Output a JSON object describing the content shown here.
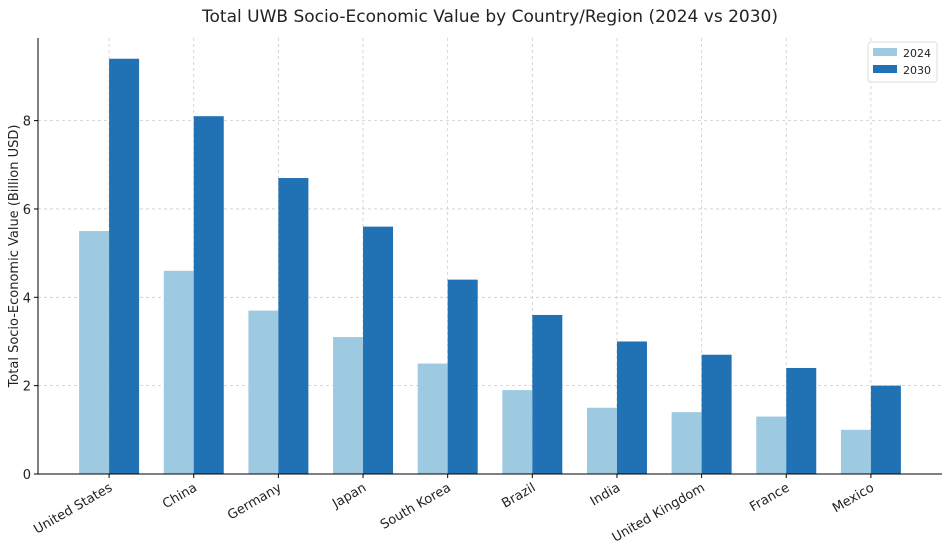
{
  "chart_data": {
    "type": "bar",
    "title": "Total UWB Socio-Economic Value by Country/Region (2024 vs 2030)",
    "xlabel": "",
    "ylabel": "Total Socio-Economic Value (Billion USD)",
    "ylim": [
      0,
      9.87
    ],
    "yticks": [
      0,
      2,
      4,
      6,
      8
    ],
    "grid": true,
    "legend_placement": "top-right",
    "categories": [
      "United States",
      "China",
      "Germany",
      "Japan",
      "South Korea",
      "Brazil",
      "India",
      "United Kingdom",
      "France",
      "Mexico"
    ],
    "series": [
      {
        "name": "2024",
        "color": "#9ecae1",
        "values": [
          5.5,
          4.6,
          3.7,
          3.1,
          2.5,
          1.9,
          1.5,
          1.4,
          1.3,
          1.0
        ]
      },
      {
        "name": "2030",
        "color": "#2171b5",
        "values": [
          9.4,
          8.1,
          6.7,
          5.6,
          4.4,
          3.6,
          3.0,
          2.7,
          2.4,
          2.0
        ]
      }
    ]
  }
}
